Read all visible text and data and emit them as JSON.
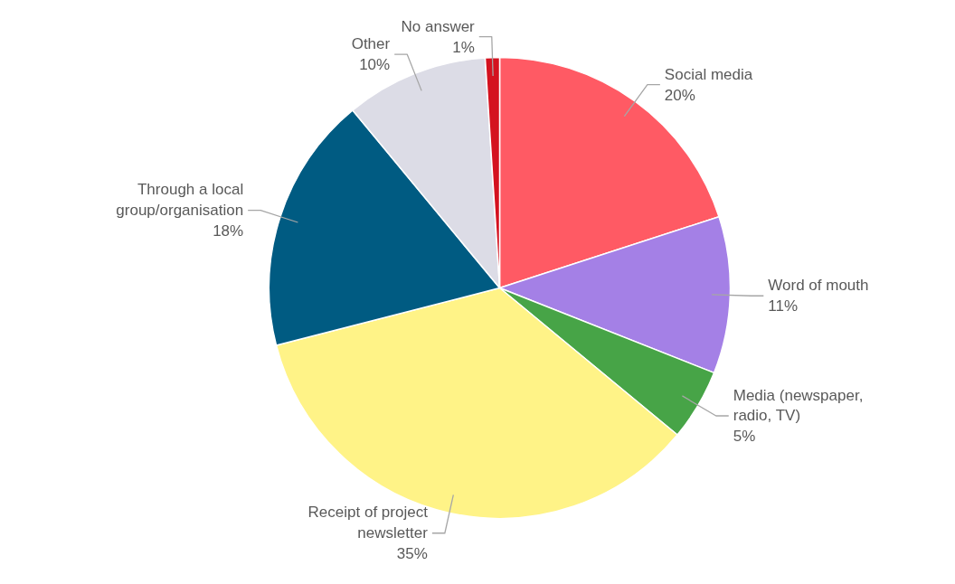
{
  "chart_data": {
    "type": "pie",
    "categories": [
      "Social media",
      "Word of mouth",
      "Media (newspaper, radio, TV)",
      "Receipt of project newsletter",
      "Through a local group/organisation",
      "Other",
      "No answer"
    ],
    "values": [
      20,
      11,
      5,
      35,
      18,
      10,
      1
    ],
    "value_labels": [
      "20%",
      "11%",
      "5%",
      "35%",
      "18%",
      "10%",
      "1%"
    ],
    "colors": [
      "#ff5a64",
      "#a480e6",
      "#47a447",
      "#fff387",
      "#005b82",
      "#dcdce6",
      "#d4121f"
    ]
  }
}
